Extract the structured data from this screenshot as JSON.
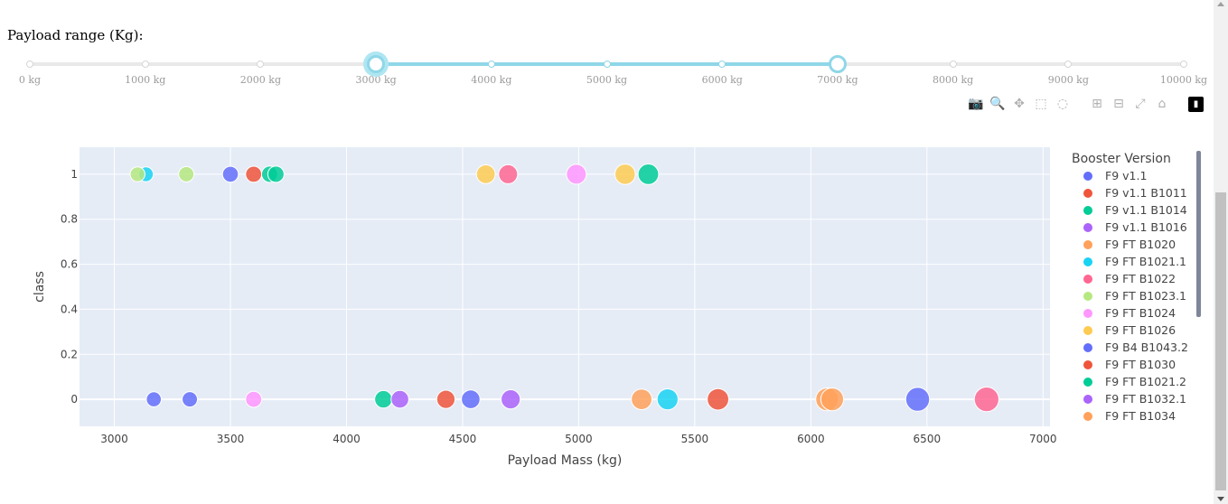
{
  "slider": {
    "label": "Payload range (Kg):",
    "min": 0,
    "max": 10000,
    "value_low": 3000,
    "value_high": 7000,
    "marks": [
      "0 kg",
      "1000 kg",
      "2000 kg",
      "3000 kg",
      "4000 kg",
      "5000 kg",
      "6000 kg",
      "7000 kg",
      "8000 kg",
      "9000 kg",
      "10000 kg"
    ],
    "mark_values": [
      0,
      1000,
      2000,
      3000,
      4000,
      5000,
      6000,
      7000,
      8000,
      9000,
      10000
    ],
    "track_color": "#8fd7e8"
  },
  "modebar": {
    "icons": [
      "camera-icon",
      "zoom-icon",
      "pan-icon",
      "box-select-icon",
      "lasso-icon",
      "zoom-in-icon",
      "zoom-out-icon",
      "autoscale-icon",
      "reset-axes-icon",
      "plotly-logo-icon"
    ],
    "active": "zoom-icon"
  },
  "chart_data": {
    "type": "scatter",
    "title": "",
    "xlabel": "Payload Mass (kg)",
    "ylabel": "class",
    "xlim": [
      2850,
      7030
    ],
    "ylim": [
      -0.12,
      1.12
    ],
    "x_ticks": [
      3000,
      3500,
      4000,
      4500,
      5000,
      5500,
      6000,
      6500,
      7000
    ],
    "y_ticks": [
      0,
      0.2,
      0.4,
      0.6,
      0.8,
      1
    ],
    "grid": true,
    "legend_position": "right",
    "legend_title": "Booster Version",
    "series": [
      {
        "name": "F9 v1.1",
        "color": "#636efa",
        "points": [
          {
            "x": 3170,
            "y": 0
          },
          {
            "x": 3325,
            "y": 0
          },
          {
            "x": 4535,
            "y": 0
          }
        ]
      },
      {
        "name": "F9 v1.1  B1011",
        "color": "#ef553b",
        "points": [
          {
            "x": 4428,
            "y": 0
          }
        ]
      },
      {
        "name": "F9 v1.1  B1014",
        "color": "#00cc96",
        "points": [
          {
            "x": 4159,
            "y": 0
          }
        ]
      },
      {
        "name": "F9 v1.1  B1016",
        "color": "#ab63fa",
        "points": [
          {
            "x": 4707,
            "y": 0
          }
        ]
      },
      {
        "name": "F9 FT  B1020",
        "color": "#ffa15a",
        "points": [
          {
            "x": 5271,
            "y": 0
          }
        ]
      },
      {
        "name": "F9 FT  B1021.1",
        "color": "#19d3f3",
        "points": [
          {
            "x": 3136,
            "y": 1
          },
          {
            "x": 5383,
            "y": 0
          }
        ]
      },
      {
        "name": "F9 FT  B1022",
        "color": "#ff6692",
        "points": [
          {
            "x": 4696,
            "y": 1
          },
          {
            "x": 6757,
            "y": 0
          }
        ]
      },
      {
        "name": "F9 FT  B1023.1",
        "color": "#b6e880",
        "points": [
          {
            "x": 3100,
            "y": 1
          },
          {
            "x": 3310,
            "y": 1
          }
        ]
      },
      {
        "name": "F9 FT  B1024",
        "color": "#ff97ff",
        "points": [
          {
            "x": 3600,
            "y": 0
          },
          {
            "x": 4990,
            "y": 1
          }
        ]
      },
      {
        "name": "F9 FT  B1026",
        "color": "#fecb52",
        "points": [
          {
            "x": 4600,
            "y": 1
          },
          {
            "x": 5200,
            "y": 1
          }
        ]
      },
      {
        "name": "F9 B4  B1043.2",
        "color": "#636efa",
        "points": [
          {
            "x": 3500,
            "y": 1
          },
          {
            "x": 6460,
            "y": 0
          }
        ]
      },
      {
        "name": "F9 FT  B1030",
        "color": "#ef553b",
        "points": [
          {
            "x": 3600,
            "y": 1
          },
          {
            "x": 5600,
            "y": 0
          }
        ]
      },
      {
        "name": "F9 FT   B1021.2",
        "color": "#00cc96",
        "points": [
          {
            "x": 3669,
            "y": 1
          },
          {
            "x": 3696,
            "y": 1
          },
          {
            "x": 5300,
            "y": 1
          }
        ]
      },
      {
        "name": "F9 FT  B1032.1",
        "color": "#ab63fa",
        "points": [
          {
            "x": 4230,
            "y": 0
          }
        ]
      },
      {
        "name": "F9 FT  B1034",
        "color": "#ffa15a",
        "points": [
          {
            "x": 6070,
            "y": 0
          },
          {
            "x": 6092,
            "y": 0
          }
        ]
      }
    ]
  }
}
